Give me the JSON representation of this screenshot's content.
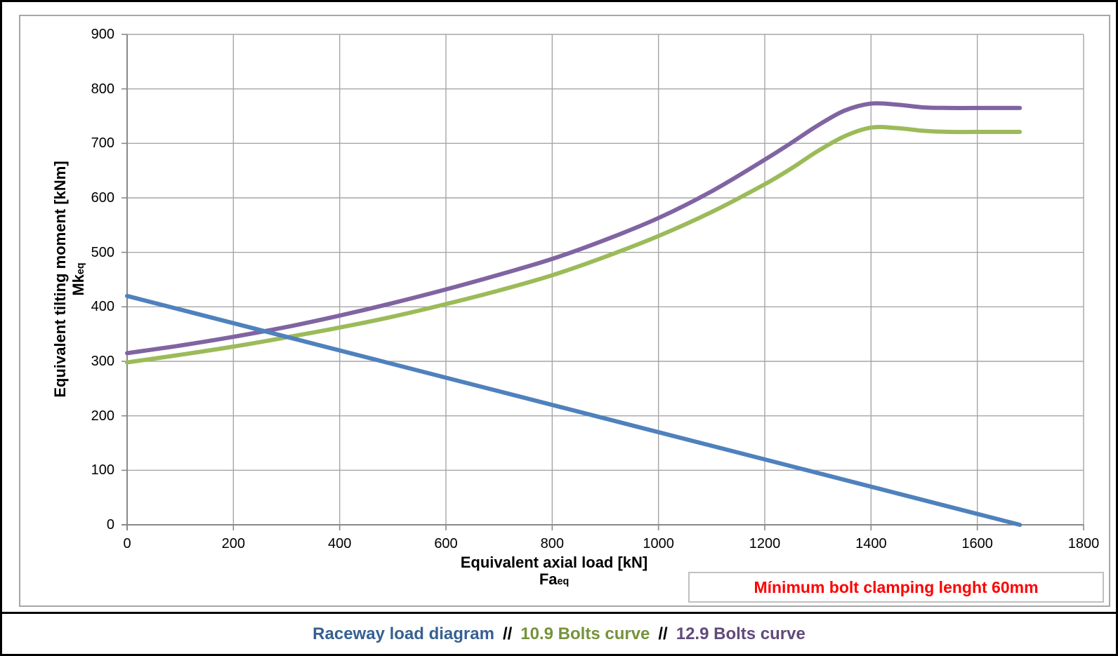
{
  "chart_data": {
    "type": "line",
    "title": "",
    "xlabel": "Equivalent axial load [kN]",
    "xlabel_symbol": "Fa",
    "xlabel_symbol_sub": "eq",
    "ylabel": "Equivalent tilting moment [kNm]",
    "ylabel_symbol": "Mk",
    "ylabel_symbol_sub": "eq",
    "xlim": [
      0,
      1800
    ],
    "ylim": [
      0,
      900
    ],
    "xticks": [
      0,
      200,
      400,
      600,
      800,
      1000,
      1200,
      1400,
      1600,
      1800
    ],
    "yticks": [
      0,
      100,
      200,
      300,
      400,
      500,
      600,
      700,
      800,
      900
    ],
    "grid": true,
    "legend_position": "bottom",
    "series": [
      {
        "name": "10.9 Bolts curve",
        "color": "#9BBB59",
        "points": [
          [
            0,
            298
          ],
          [
            100,
            312
          ],
          [
            200,
            327
          ],
          [
            300,
            344
          ],
          [
            400,
            362
          ],
          [
            500,
            382
          ],
          [
            600,
            405
          ],
          [
            700,
            430
          ],
          [
            800,
            458
          ],
          [
            900,
            492
          ],
          [
            1000,
            530
          ],
          [
            1100,
            574
          ],
          [
            1200,
            625
          ],
          [
            1250,
            654
          ],
          [
            1300,
            686
          ],
          [
            1350,
            713
          ],
          [
            1400,
            729
          ],
          [
            1450,
            728
          ],
          [
            1500,
            723
          ],
          [
            1550,
            721
          ],
          [
            1600,
            721
          ],
          [
            1680,
            721
          ]
        ]
      },
      {
        "name": "12.9 Bolts curve",
        "color": "#8064A2",
        "points": [
          [
            0,
            315
          ],
          [
            100,
            329
          ],
          [
            200,
            345
          ],
          [
            300,
            363
          ],
          [
            400,
            384
          ],
          [
            500,
            407
          ],
          [
            600,
            432
          ],
          [
            700,
            459
          ],
          [
            800,
            488
          ],
          [
            900,
            523
          ],
          [
            1000,
            563
          ],
          [
            1100,
            612
          ],
          [
            1200,
            670
          ],
          [
            1250,
            701
          ],
          [
            1300,
            733
          ],
          [
            1350,
            760
          ],
          [
            1400,
            773
          ],
          [
            1450,
            771
          ],
          [
            1500,
            766
          ],
          [
            1550,
            765
          ],
          [
            1600,
            765
          ],
          [
            1680,
            765
          ]
        ]
      },
      {
        "name": "Raceway load diagram",
        "color": "#4F81BD",
        "points": [
          [
            0,
            420
          ],
          [
            1680,
            0
          ]
        ]
      }
    ]
  },
  "annotation": {
    "text": "Mínimum bolt clamping lenght 60mm",
    "color": "#FF0000"
  },
  "legend": {
    "separator": "//",
    "separator_color": "#000000",
    "items": [
      {
        "label": "Raceway load diagram",
        "color": "#376092"
      },
      {
        "label": "10.9 Bolts curve",
        "color": "#76933C"
      },
      {
        "label": "12.9 Bolts curve",
        "color": "#604A7B"
      }
    ]
  },
  "style_colors": {
    "grid": "#A6A6A6",
    "axis": "#898989",
    "panel_border": "#A6A6A6",
    "outer_border": "#000000"
  }
}
